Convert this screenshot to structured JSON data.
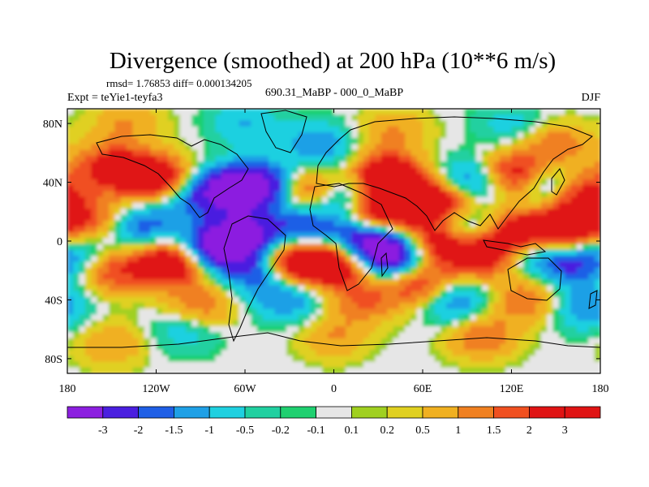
{
  "chart_data": {
    "type": "heatmap",
    "title": "Divergence (smoothed) at 200 hPa (10**6 m/s)",
    "stats": "rmsd= 1.76853 diff= 0.000134205",
    "left_label": "Expt = teYie1-teyfa3",
    "center_label": "690.31_MaBP - 000_0_MaBP",
    "season": "DJF",
    "x_axis": {
      "range": [
        -180,
        180
      ],
      "tick_values": [
        -180,
        -120,
        -60,
        0,
        60,
        120,
        180
      ],
      "tick_labels": [
        "180",
        "120W",
        "60W",
        "0",
        "60E",
        "120E",
        "180"
      ]
    },
    "y_axis": {
      "range": [
        -90,
        90
      ],
      "tick_values": [
        80,
        40,
        0,
        -40,
        -80
      ],
      "tick_labels": [
        "80N",
        "40N",
        "0",
        "40S",
        "80S"
      ]
    },
    "colorbar": {
      "boundaries": [
        "-3",
        "-2",
        "-1.5",
        "-1",
        "-0.5",
        "-0.2",
        "-0.1",
        "0.1",
        "0.2",
        "0.5",
        "1",
        "1.5",
        "2",
        "3"
      ],
      "colors": [
        "#8c1fe0",
        "#4a1fe0",
        "#1f5fe6",
        "#1fa0e6",
        "#1fd0e0",
        "#20d0a0",
        "#1fd070",
        "#e6e6e6",
        "#a0d020",
        "#e0d020",
        "#f0b020",
        "#f08020",
        "#f05020",
        "#e01414",
        "#e01414"
      ]
    },
    "blobs": [
      {
        "lon": -150,
        "lat": 50,
        "value": 2.5
      },
      {
        "lon": -120,
        "lat": 42,
        "value": 3.5
      },
      {
        "lon": -100,
        "lat": 30,
        "value": -1.5
      },
      {
        "lon": -70,
        "lat": 35,
        "value": -3.5
      },
      {
        "lon": -45,
        "lat": 38,
        "value": -3
      },
      {
        "lon": -20,
        "lat": 35,
        "value": 2.5
      },
      {
        "lon": 10,
        "lat": 30,
        "value": -2
      },
      {
        "lon": 35,
        "lat": 45,
        "value": 3
      },
      {
        "lon": 50,
        "lat": 30,
        "value": 3
      },
      {
        "lon": 80,
        "lat": 25,
        "value": 2.5
      },
      {
        "lon": 95,
        "lat": 40,
        "value": -2.5
      },
      {
        "lon": 120,
        "lat": 45,
        "value": 3
      },
      {
        "lon": 150,
        "lat": 38,
        "value": -2.5
      },
      {
        "lon": 165,
        "lat": 35,
        "value": 3
      },
      {
        "lon": -80,
        "lat": -5,
        "value": -3.5
      },
      {
        "lon": -110,
        "lat": -15,
        "value": 3.5
      },
      {
        "lon": -150,
        "lat": -20,
        "value": 2
      },
      {
        "lon": -50,
        "lat": -20,
        "value": -2.5
      },
      {
        "lon": -60,
        "lat": 5,
        "value": -3
      },
      {
        "lon": -30,
        "lat": -15,
        "value": 3.5
      },
      {
        "lon": 0,
        "lat": -15,
        "value": 3.5
      },
      {
        "lon": 20,
        "lat": 0,
        "value": -3
      },
      {
        "lon": 40,
        "lat": -10,
        "value": -3.5
      },
      {
        "lon": 30,
        "lat": 20,
        "value": 3
      },
      {
        "lon": 70,
        "lat": 0,
        "value": 3
      },
      {
        "lon": 90,
        "lat": 10,
        "value": -2.5
      },
      {
        "lon": 100,
        "lat": -10,
        "value": 2.5
      },
      {
        "lon": 120,
        "lat": 5,
        "value": 3
      },
      {
        "lon": 135,
        "lat": -5,
        "value": -2
      },
      {
        "lon": 150,
        "lat": 5,
        "value": 3
      },
      {
        "lon": 160,
        "lat": -15,
        "value": -2
      },
      {
        "lon": 170,
        "lat": 15,
        "value": 2
      },
      {
        "lon": -130,
        "lat": 10,
        "value": -2
      },
      {
        "lon": -160,
        "lat": 15,
        "value": 1.5
      },
      {
        "lon": -90,
        "lat": -45,
        "value": 1.5
      },
      {
        "lon": -30,
        "lat": -40,
        "value": -1.5
      },
      {
        "lon": 20,
        "lat": -40,
        "value": 1.5
      },
      {
        "lon": 80,
        "lat": -40,
        "value": -2
      },
      {
        "lon": 130,
        "lat": -40,
        "value": 1.5
      },
      {
        "lon": 170,
        "lat": -45,
        "value": -1.5
      },
      {
        "lon": -100,
        "lat": -60,
        "value": -1
      },
      {
        "lon": 0,
        "lat": -65,
        "value": 1
      },
      {
        "lon": 100,
        "lat": -65,
        "value": 1.5
      },
      {
        "lon": -150,
        "lat": -70,
        "value": 1
      },
      {
        "lon": -140,
        "lat": 80,
        "value": 1
      },
      {
        "lon": -60,
        "lat": 80,
        "value": -1
      },
      {
        "lon": 40,
        "lat": 75,
        "value": 1
      },
      {
        "lon": 120,
        "lat": 78,
        "value": -0.8
      },
      {
        "lon": 150,
        "lat": 65,
        "value": 1.5
      },
      {
        "lon": -10,
        "lat": 65,
        "value": -1.5
      },
      {
        "lon": -170,
        "lat": -10,
        "value": -1.2
      },
      {
        "lon": -20,
        "lat": 10,
        "value": -2
      },
      {
        "lon": 60,
        "lat": -30,
        "value": 2.5
      }
    ]
  }
}
